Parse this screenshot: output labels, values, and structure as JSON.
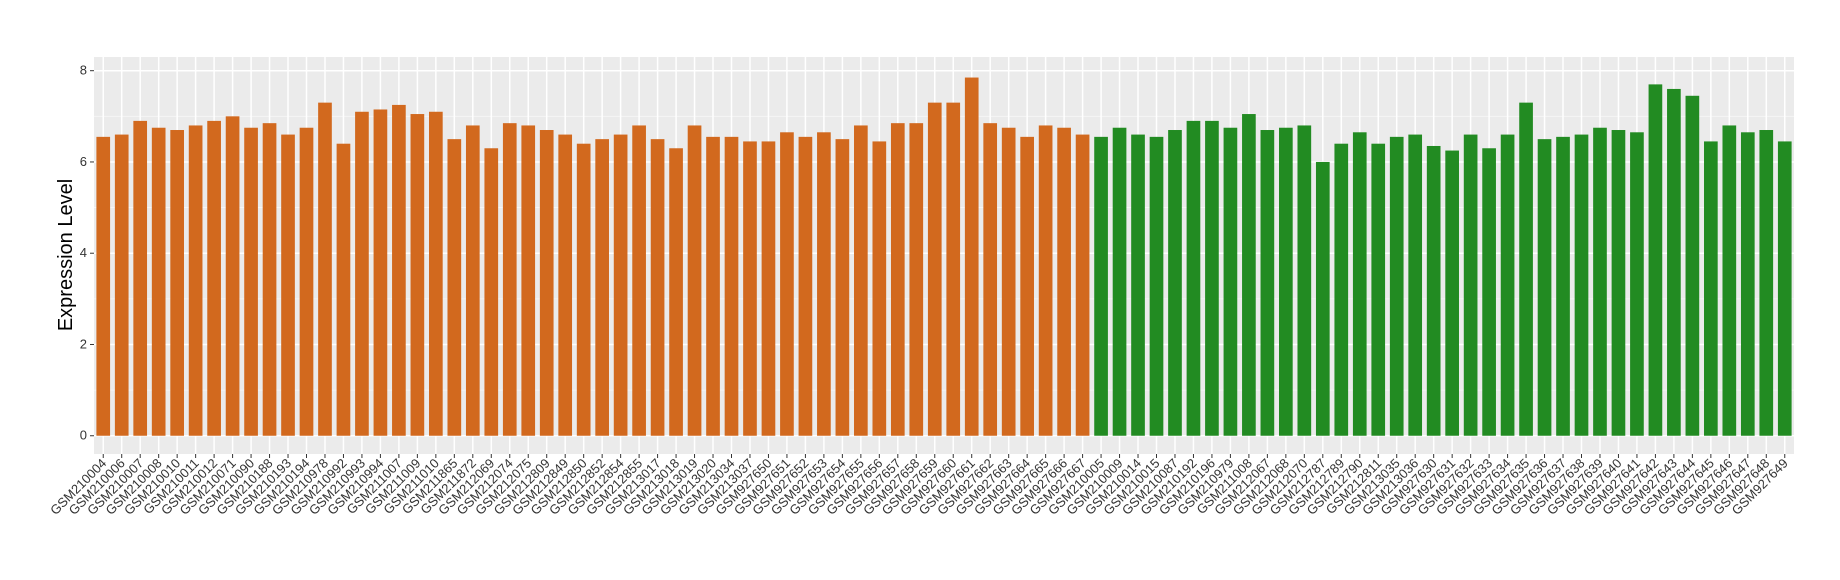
{
  "chart_data": {
    "type": "bar",
    "ylabel": "Expression Level",
    "categories": [
      "GSM210004",
      "GSM210006",
      "GSM210007",
      "GSM210008",
      "GSM210010",
      "GSM210011",
      "GSM210012",
      "GSM210071",
      "GSM210090",
      "GSM210188",
      "GSM210193",
      "GSM210194",
      "GSM210978",
      "GSM210992",
      "GSM210993",
      "GSM210994",
      "GSM211007",
      "GSM211009",
      "GSM211010",
      "GSM211865",
      "GSM211872",
      "GSM212069",
      "GSM212074",
      "GSM212075",
      "GSM212809",
      "GSM212849",
      "GSM212850",
      "GSM212852",
      "GSM212854",
      "GSM212855",
      "GSM213017",
      "GSM213018",
      "GSM213019",
      "GSM213020",
      "GSM213034",
      "GSM213037",
      "GSM927650",
      "GSM927651",
      "GSM927652",
      "GSM927653",
      "GSM927654",
      "GSM927655",
      "GSM927656",
      "GSM927657",
      "GSM927658",
      "GSM927659",
      "GSM927660",
      "GSM927661",
      "GSM927662",
      "GSM927663",
      "GSM927664",
      "GSM927665",
      "GSM927666",
      "GSM927667",
      "GSM210005",
      "GSM210009",
      "GSM210014",
      "GSM210015",
      "GSM210087",
      "GSM210192",
      "GSM210196",
      "GSM210979",
      "GSM211008",
      "GSM212067",
      "GSM212068",
      "GSM212070",
      "GSM212787",
      "GSM212789",
      "GSM212790",
      "GSM212811",
      "GSM213035",
      "GSM213036",
      "GSM927630",
      "GSM927631",
      "GSM927632",
      "GSM927633",
      "GSM927634",
      "GSM927635",
      "GSM927636",
      "GSM927637",
      "GSM927638",
      "GSM927639",
      "GSM927640",
      "GSM927641",
      "GSM927642",
      "GSM927643",
      "GSM927644",
      "GSM927645",
      "GSM927646",
      "GSM927647",
      "GSM927648",
      "GSM927649"
    ],
    "values": [
      6.55,
      6.6,
      6.9,
      6.75,
      6.7,
      6.8,
      6.9,
      7.0,
      6.75,
      6.85,
      6.6,
      6.75,
      7.3,
      6.4,
      7.1,
      7.15,
      7.25,
      7.05,
      7.1,
      6.5,
      6.8,
      6.3,
      6.85,
      6.8,
      6.7,
      6.6,
      6.4,
      6.5,
      6.6,
      6.8,
      6.5,
      6.3,
      6.8,
      6.55,
      6.55,
      6.45,
      6.45,
      6.65,
      6.55,
      6.65,
      6.5,
      6.8,
      6.45,
      6.85,
      6.85,
      7.3,
      7.3,
      7.85,
      6.85,
      6.75,
      6.55,
      6.8,
      6.75,
      6.6,
      6.55,
      6.75,
      6.6,
      6.55,
      6.7,
      6.9,
      6.9,
      6.75,
      7.05,
      6.7,
      6.75,
      6.8,
      6.0,
      6.4,
      6.65,
      6.4,
      6.55,
      6.6,
      6.35,
      6.25,
      6.6,
      6.3,
      6.6,
      7.3,
      6.5,
      6.55,
      6.6,
      6.75,
      6.7,
      6.65,
      7.7,
      7.6,
      7.45,
      6.45,
      6.8,
      6.65,
      6.7,
      6.45
    ],
    "colors": [
      "#d2691e",
      "#d2691e",
      "#d2691e",
      "#d2691e",
      "#d2691e",
      "#d2691e",
      "#d2691e",
      "#d2691e",
      "#d2691e",
      "#d2691e",
      "#d2691e",
      "#d2691e",
      "#d2691e",
      "#d2691e",
      "#d2691e",
      "#d2691e",
      "#d2691e",
      "#d2691e",
      "#d2691e",
      "#d2691e",
      "#d2691e",
      "#d2691e",
      "#d2691e",
      "#d2691e",
      "#d2691e",
      "#d2691e",
      "#d2691e",
      "#d2691e",
      "#d2691e",
      "#d2691e",
      "#d2691e",
      "#d2691e",
      "#d2691e",
      "#d2691e",
      "#d2691e",
      "#d2691e",
      "#d2691e",
      "#d2691e",
      "#d2691e",
      "#d2691e",
      "#d2691e",
      "#d2691e",
      "#d2691e",
      "#d2691e",
      "#d2691e",
      "#d2691e",
      "#d2691e",
      "#d2691e",
      "#d2691e",
      "#d2691e",
      "#d2691e",
      "#d2691e",
      "#d2691e",
      "#d2691e",
      "#228b22",
      "#228b22",
      "#228b22",
      "#228b22",
      "#228b22",
      "#228b22",
      "#228b22",
      "#228b22",
      "#228b22",
      "#228b22",
      "#228b22",
      "#228b22",
      "#228b22",
      "#228b22",
      "#228b22",
      "#228b22",
      "#228b22",
      "#228b22",
      "#228b22",
      "#228b22",
      "#228b22",
      "#228b22",
      "#228b22",
      "#228b22",
      "#228b22",
      "#228b22",
      "#228b22",
      "#228b22",
      "#228b22",
      "#228b22",
      "#228b22",
      "#228b22",
      "#228b22",
      "#228b22",
      "#228b22",
      "#228b22",
      "#228b22",
      "#228b22"
    ],
    "ylim": [
      -0.4,
      8.3
    ],
    "yticks": [
      0,
      2,
      4,
      6,
      8
    ],
    "grid": true
  }
}
